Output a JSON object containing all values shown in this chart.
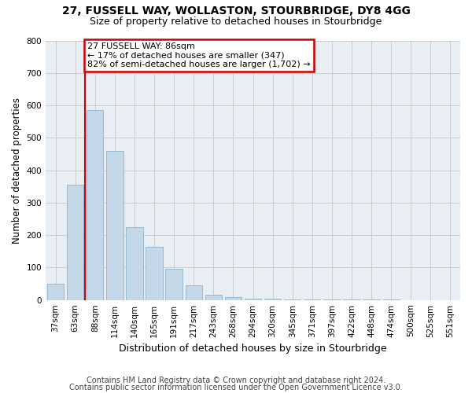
{
  "title1": "27, FUSSELL WAY, WOLLASTON, STOURBRIDGE, DY8 4GG",
  "title2": "Size of property relative to detached houses in Stourbridge",
  "xlabel": "Distribution of detached houses by size in Stourbridge",
  "ylabel": "Number of detached properties",
  "footnote1": "Contains HM Land Registry data © Crown copyright and database right 2024.",
  "footnote2": "Contains public sector information licensed under the Open Government Licence v3.0.",
  "annotation_title": "27 FUSSELL WAY: 86sqm",
  "annotation_line1": "← 17% of detached houses are smaller (347)",
  "annotation_line2": "82% of semi-detached houses are larger (1,702) →",
  "bar_categories": [
    "37sqm",
    "63sqm",
    "88sqm",
    "114sqm",
    "140sqm",
    "165sqm",
    "191sqm",
    "217sqm",
    "243sqm",
    "268sqm",
    "294sqm",
    "320sqm",
    "345sqm",
    "371sqm",
    "397sqm",
    "422sqm",
    "448sqm",
    "474sqm",
    "500sqm",
    "525sqm",
    "551sqm"
  ],
  "bar_values": [
    50,
    355,
    585,
    460,
    225,
    165,
    95,
    45,
    15,
    8,
    5,
    3,
    2,
    2,
    1,
    1,
    1,
    1,
    0,
    0,
    0
  ],
  "bar_color": "#c5d8ea",
  "bar_edge_color": "#8ab4cc",
  "annotation_box_color": "#cc0000",
  "annotation_box_fill": "white",
  "vline_color": "#cc0000",
  "ylim": [
    0,
    800
  ],
  "yticks": [
    0,
    100,
    200,
    300,
    400,
    500,
    600,
    700,
    800
  ],
  "grid_color": "#cccccc",
  "bg_color": "#e8eef4",
  "title1_fontsize": 10,
  "title2_fontsize": 9,
  "xlabel_fontsize": 9,
  "ylabel_fontsize": 8.5,
  "tick_fontsize": 7.5,
  "ann_fontsize": 8,
  "footnote_fontsize": 7
}
